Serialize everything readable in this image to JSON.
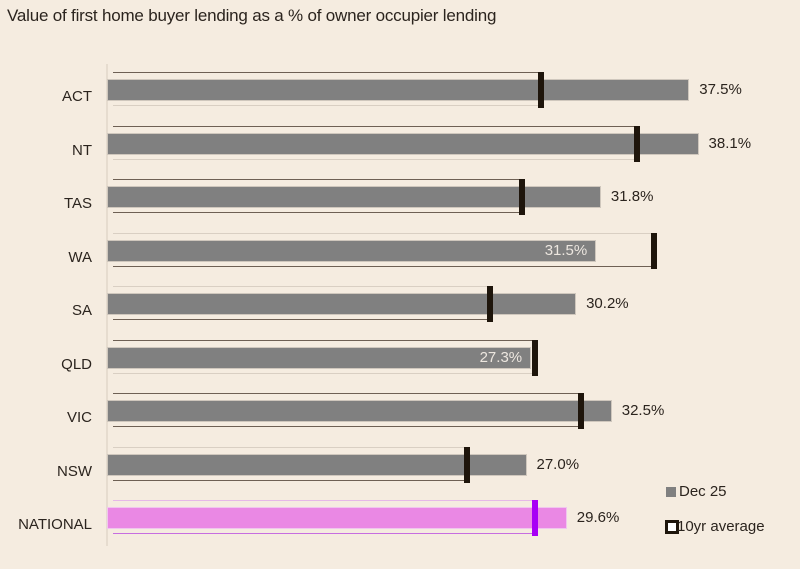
{
  "title": "Value of first home buyer lending as a % of owner occupier lending",
  "legend": {
    "current_label": "Dec 25",
    "average_label": "10yr average"
  },
  "colors": {
    "background": "#f5ece0",
    "bar": "#808080",
    "marker": "#1e150b",
    "national_bar": "#ea88e4",
    "national_marker": "#a800f5"
  },
  "rows": [
    {
      "label": "ACT",
      "value_label": "37.5%"
    },
    {
      "label": "NT",
      "value_label": "38.1%"
    },
    {
      "label": "TAS",
      "value_label": "31.8%"
    },
    {
      "label": "WA",
      "value_label": "31.5%"
    },
    {
      "label": "SA",
      "value_label": "30.2%"
    },
    {
      "label": "QLD",
      "value_label": "27.3%"
    },
    {
      "label": "VIC",
      "value_label": "32.5%"
    },
    {
      "label": "NSW",
      "value_label": "27.0%"
    },
    {
      "label": "NATIONAL",
      "value_label": "29.6%"
    }
  ],
  "chart_data": {
    "type": "bar",
    "orientation": "horizontal",
    "title": "Value of first home buyer lending as a % of owner occupier lending",
    "xlabel": "",
    "ylabel": "",
    "categories": [
      "ACT",
      "NT",
      "TAS",
      "WA",
      "SA",
      "QLD",
      "VIC",
      "NSW",
      "NATIONAL"
    ],
    "series": [
      {
        "name": "Dec 25",
        "values": [
          37.5,
          38.1,
          31.8,
          31.5,
          30.2,
          27.3,
          32.5,
          27.0,
          29.6
        ]
      },
      {
        "name": "10yr average",
        "values": [
          28.0,
          34.2,
          26.8,
          35.3,
          24.7,
          27.6,
          30.6,
          23.2,
          27.6
        ]
      }
    ],
    "xlim": [
      0,
      44
    ],
    "grid": false,
    "legend_position": "bottom-right",
    "highlight": "NATIONAL"
  }
}
